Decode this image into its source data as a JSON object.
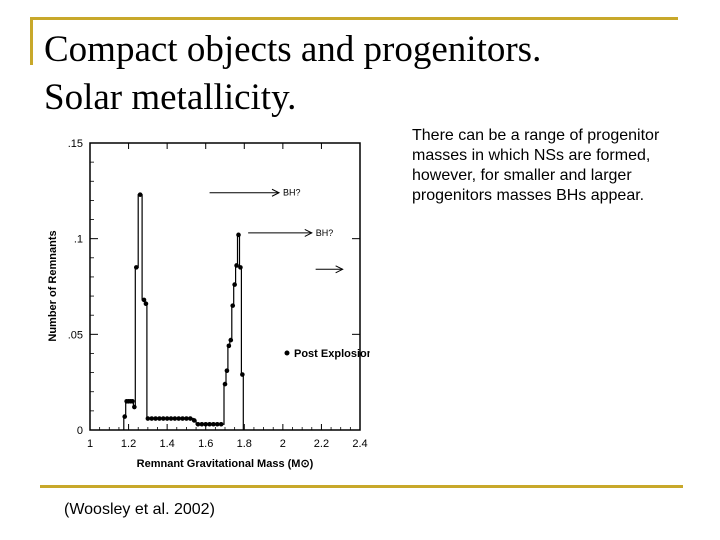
{
  "slide": {
    "title_line1": "Compact objects and progenitors.",
    "title_line2": "Solar metallicity.",
    "note": "There can be a range of progenitor masses in which NSs are formed, however, for smaller and larger progenitors masses BHs appear.",
    "citation": "(Woosley et al. 2002)",
    "accent_color": "#c8a82a"
  },
  "chart_data": {
    "type": "line",
    "xlabel": "Remnant Gravitational Mass (M⊙)",
    "ylabel": "Number of Remnants",
    "xlim": [
      1,
      2.4
    ],
    "ylim": [
      0,
      0.15
    ],
    "x_ticks": [
      1,
      1.2,
      1.4,
      1.6,
      1.8,
      2,
      2.2,
      2.4
    ],
    "x_tick_labels": [
      "1",
      "1.2",
      "1.4",
      "1.6",
      "1.8",
      "2",
      "2.2",
      "2.4"
    ],
    "y_ticks": [
      0,
      0.05,
      0.1,
      0.15
    ],
    "y_tick_labels": [
      "0",
      ".05",
      ".1",
      ".15"
    ],
    "series": [
      {
        "name": "Post Explosion",
        "marker": "dot",
        "points": [
          [
            1.18,
            0.007
          ],
          [
            1.19,
            0.015
          ],
          [
            1.2,
            0.015
          ],
          [
            1.21,
            0.015
          ],
          [
            1.22,
            0.015
          ],
          [
            1.23,
            0.012
          ],
          [
            1.24,
            0.085
          ],
          [
            1.26,
            0.123
          ],
          [
            1.28,
            0.068
          ],
          [
            1.29,
            0.066
          ],
          [
            1.3,
            0.006
          ],
          [
            1.32,
            0.006
          ],
          [
            1.34,
            0.006
          ],
          [
            1.36,
            0.006
          ],
          [
            1.38,
            0.006
          ],
          [
            1.4,
            0.006
          ],
          [
            1.42,
            0.006
          ],
          [
            1.44,
            0.006
          ],
          [
            1.46,
            0.006
          ],
          [
            1.48,
            0.006
          ],
          [
            1.5,
            0.006
          ],
          [
            1.52,
            0.006
          ],
          [
            1.54,
            0.005
          ],
          [
            1.56,
            0.003
          ],
          [
            1.58,
            0.003
          ],
          [
            1.6,
            0.003
          ],
          [
            1.62,
            0.003
          ],
          [
            1.64,
            0.003
          ],
          [
            1.66,
            0.003
          ],
          [
            1.68,
            0.003
          ],
          [
            1.7,
            0.024
          ],
          [
            1.71,
            0.031
          ],
          [
            1.72,
            0.044
          ],
          [
            1.73,
            0.047
          ],
          [
            1.74,
            0.065
          ],
          [
            1.75,
            0.076
          ],
          [
            1.76,
            0.086
          ],
          [
            1.77,
            0.102
          ],
          [
            1.78,
            0.085
          ],
          [
            1.79,
            0.029
          ]
        ],
        "step_line": [
          [
            1.175,
            0
          ],
          [
            1.175,
            0.007
          ],
          [
            1.185,
            0.007
          ],
          [
            1.185,
            0.015
          ],
          [
            1.225,
            0.015
          ],
          [
            1.225,
            0.012
          ],
          [
            1.235,
            0.012
          ],
          [
            1.235,
            0.085
          ],
          [
            1.25,
            0.085
          ],
          [
            1.25,
            0.123
          ],
          [
            1.27,
            0.123
          ],
          [
            1.27,
            0.068
          ],
          [
            1.285,
            0.068
          ],
          [
            1.285,
            0.066
          ],
          [
            1.295,
            0.066
          ],
          [
            1.295,
            0.006
          ],
          [
            1.535,
            0.006
          ],
          [
            1.535,
            0.005
          ],
          [
            1.55,
            0.005
          ],
          [
            1.55,
            0.003
          ],
          [
            1.695,
            0.003
          ],
          [
            1.695,
            0.024
          ],
          [
            1.705,
            0.024
          ],
          [
            1.705,
            0.031
          ],
          [
            1.715,
            0.031
          ],
          [
            1.715,
            0.044
          ],
          [
            1.725,
            0.044
          ],
          [
            1.725,
            0.047
          ],
          [
            1.735,
            0.047
          ],
          [
            1.735,
            0.065
          ],
          [
            1.745,
            0.065
          ],
          [
            1.745,
            0.076
          ],
          [
            1.755,
            0.076
          ],
          [
            1.755,
            0.086
          ],
          [
            1.765,
            0.086
          ],
          [
            1.765,
            0.102
          ],
          [
            1.775,
            0.102
          ],
          [
            1.775,
            0.085
          ],
          [
            1.785,
            0.085
          ],
          [
            1.785,
            0.029
          ],
          [
            1.795,
            0.029
          ],
          [
            1.795,
            0
          ]
        ]
      }
    ],
    "legend": {
      "label": "Post Explosion",
      "position": "lower-right"
    },
    "annotations": [
      {
        "text": "BH?",
        "x_start": 1.62,
        "x_end": 1.98,
        "y": 0.124
      },
      {
        "text": "BH?",
        "x_start": 1.82,
        "x_end": 2.15,
        "y": 0.103
      },
      {
        "text": "",
        "x_start": 2.17,
        "x_end": 2.31,
        "y": 0.084
      }
    ],
    "grid": false
  }
}
